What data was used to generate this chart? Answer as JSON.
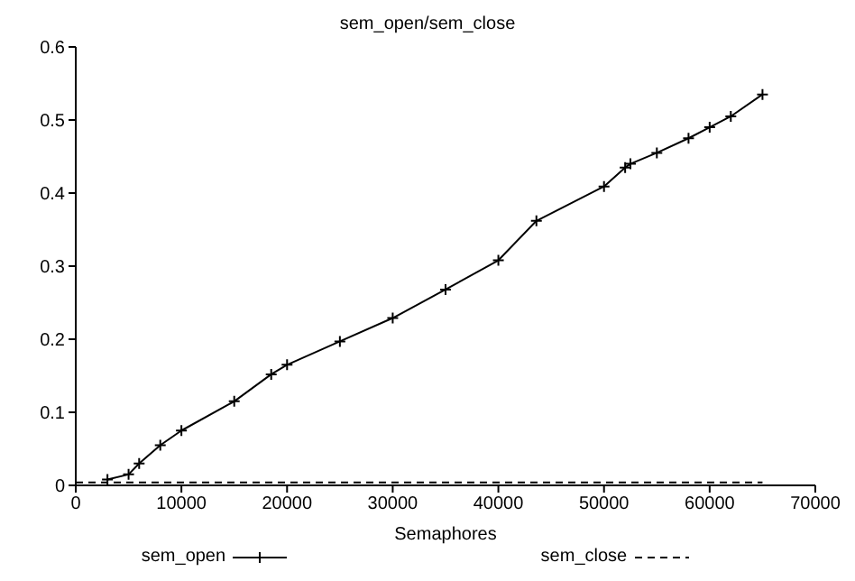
{
  "chart_data": {
    "type": "line",
    "title": "sem_open/sem_close",
    "xlabel": "Semaphores",
    "xlim": [
      0,
      70000
    ],
    "xticks": [
      0,
      10000,
      20000,
      30000,
      40000,
      50000,
      60000,
      70000
    ],
    "ylim": [
      0,
      0.6
    ],
    "yticks": [
      0,
      0.1,
      0.2,
      0.3,
      0.4,
      0.5,
      0.6
    ],
    "legend": "bottom",
    "series": [
      {
        "name": "sem_open",
        "color": "#000000",
        "marker": "cross",
        "line_style": "solid",
        "x": [
          3000,
          5000,
          6000,
          8000,
          10000,
          15000,
          18500,
          20000,
          25000,
          30000,
          35000,
          40000,
          43600,
          50000,
          52000,
          52500,
          55000,
          58000,
          60000,
          62000,
          65000
        ],
        "values": [
          0.008,
          0.015,
          0.03,
          0.055,
          0.075,
          0.115,
          0.152,
          0.165,
          0.197,
          0.229,
          0.268,
          0.308,
          0.362,
          0.409,
          0.435,
          0.44,
          0.455,
          0.475,
          0.49,
          0.505,
          0.535
        ]
      },
      {
        "name": "sem_close",
        "color": "#000000",
        "marker": "none",
        "line_style": "dashed",
        "x": [
          0,
          65000
        ],
        "values": [
          0.004,
          0.004
        ]
      }
    ]
  }
}
